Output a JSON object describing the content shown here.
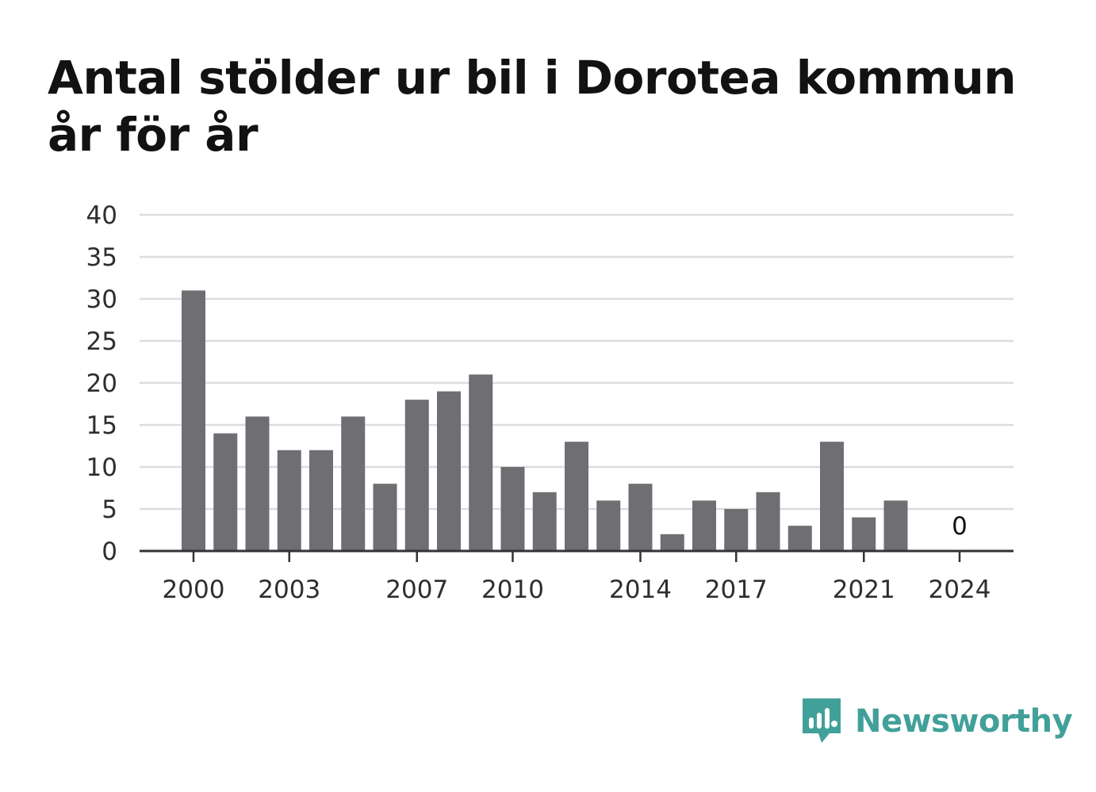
{
  "title": "Antal stölder ur bil i Dorotea kommun år för år",
  "brand": {
    "name": "Newsworthy",
    "icon": "newsworthy-logo-icon",
    "color": "#42a09a"
  },
  "chart_data": {
    "type": "bar",
    "title": "Antal stölder ur bil i Dorotea kommun år för år",
    "xlabel": "",
    "ylabel": "",
    "categories": [
      2000,
      2001,
      2002,
      2003,
      2004,
      2005,
      2006,
      2007,
      2008,
      2009,
      2010,
      2011,
      2012,
      2013,
      2014,
      2015,
      2016,
      2017,
      2018,
      2019,
      2020,
      2021,
      2022,
      2023,
      2024
    ],
    "values": [
      31,
      14,
      16,
      12,
      12,
      16,
      8,
      18,
      19,
      21,
      10,
      7,
      13,
      6,
      8,
      2,
      6,
      5,
      7,
      3,
      13,
      4,
      6,
      null,
      0
    ],
    "x_tick_labels": [
      "2000",
      "2003",
      "2007",
      "2010",
      "2014",
      "2017",
      "2021",
      "2024"
    ],
    "y_ticks": [
      0,
      5,
      10,
      15,
      20,
      25,
      30,
      35,
      40
    ],
    "ylim": [
      0,
      40
    ],
    "grid": true,
    "legend": "none",
    "bar_color": "#6f6e73",
    "annotations": [
      {
        "x": 2024,
        "text": "0"
      }
    ]
  }
}
